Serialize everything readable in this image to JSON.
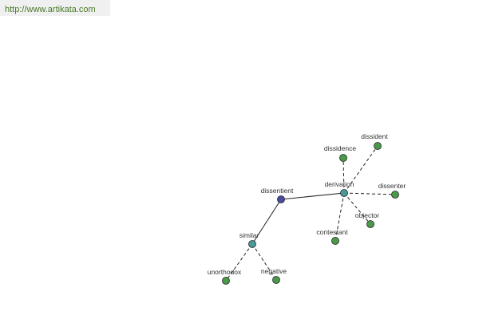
{
  "header": {
    "url": "http://www.artikata.com"
  },
  "nodes": [
    {
      "label": "dissentient"
    },
    {
      "label": "derivation"
    },
    {
      "label": "similar"
    },
    {
      "label": "dissidence"
    },
    {
      "label": "dissident"
    },
    {
      "label": "dissenter"
    },
    {
      "label": "objector"
    },
    {
      "label": "contestant"
    },
    {
      "label": "unorthodox"
    },
    {
      "label": "negative"
    }
  ]
}
